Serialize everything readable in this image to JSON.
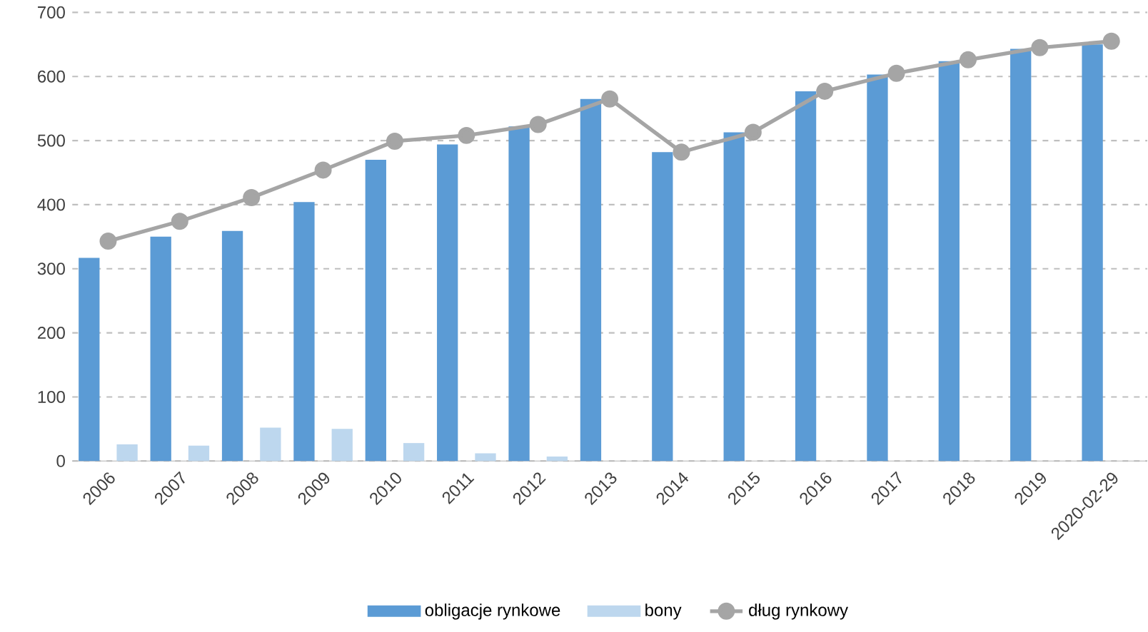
{
  "chart_data": {
    "type": "bar",
    "categories": [
      "2006",
      "2007",
      "2008",
      "2009",
      "2010",
      "2011",
      "2012",
      "2013",
      "2014",
      "2015",
      "2016",
      "2017",
      "2018",
      "2019",
      "2020-02-29"
    ],
    "series": [
      {
        "name": "obligacje rynkowe",
        "color": "#5b9bd5",
        "values": [
          317,
          350,
          359,
          404,
          470,
          494,
          522,
          565,
          482,
          513,
          577,
          603,
          624,
          643,
          650
        ]
      },
      {
        "name": "bony",
        "color": "#bdd7ee",
        "values": [
          26,
          24,
          52,
          50,
          28,
          12,
          7,
          null,
          null,
          null,
          null,
          null,
          null,
          null,
          null
        ]
      },
      {
        "name": "dług rynkowy",
        "type": "line",
        "color": "#a5a5a5",
        "marker": "circle",
        "line_style": "solid",
        "values": [
          343,
          374,
          411,
          454,
          499,
          508,
          525,
          565,
          482,
          513,
          577,
          605,
          626,
          645,
          655
        ]
      }
    ],
    "ylim": [
      0,
      700
    ],
    "yticks": [
      0,
      100,
      200,
      300,
      400,
      500,
      600,
      700
    ],
    "grid": "y",
    "legend": "bottom"
  }
}
